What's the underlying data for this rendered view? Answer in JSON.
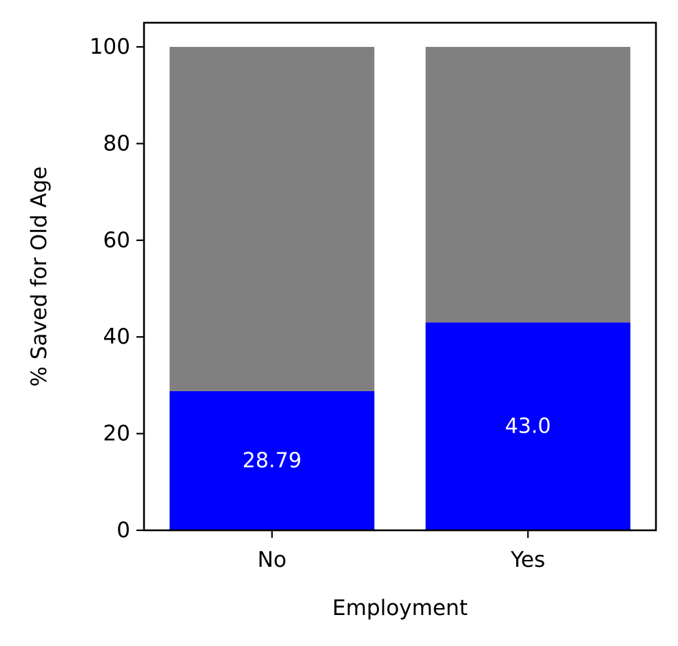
{
  "chart_data": {
    "type": "bar",
    "stacked": true,
    "xlabel": "Employment",
    "ylabel": "% Saved for Old Age",
    "categories": [
      "No",
      "Yes"
    ],
    "series": [
      {
        "values": [
          28.79,
          43.0
        ],
        "color": "#0000ff"
      },
      {
        "values": [
          71.21,
          57.0
        ],
        "color": "#808080"
      }
    ],
    "data_labels": [
      "28.79",
      "43.0"
    ],
    "data_label_color": "#ffffff",
    "yticks": [
      0,
      20,
      40,
      60,
      80,
      100
    ],
    "ytick_labels": [
      "0",
      "20",
      "40",
      "60",
      "80",
      "100"
    ],
    "ylim": [
      0,
      105
    ],
    "grid": false
  }
}
